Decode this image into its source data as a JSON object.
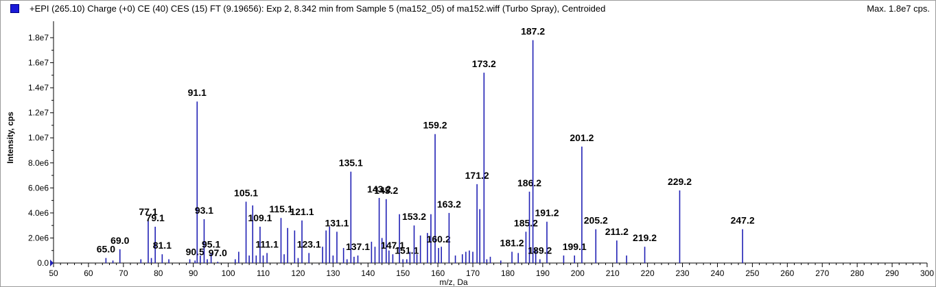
{
  "header": {
    "title": "+EPI (265.10) Charge (+0) CE (40) CES (15) FT (9.19656): Exp 2, 8.342 min from Sample 5 (ma152_05) of ma152.wiff (Turbo Spray), Centroided",
    "max_text": "Max. 1.8e7 cps.",
    "legend_color": "#1a1ad8"
  },
  "chart_data": {
    "type": "bar",
    "xlabel": "m/z, Da",
    "ylabel": "Intensity, cps",
    "xlim": [
      50,
      300
    ],
    "ylim": [
      0,
      18000000.0
    ],
    "x_ticks": [
      50,
      60,
      70,
      80,
      90,
      100,
      110,
      120,
      130,
      140,
      150,
      160,
      170,
      180,
      190,
      200,
      210,
      220,
      230,
      240,
      250,
      260,
      270,
      280,
      290,
      300
    ],
    "y_ticks": [
      {
        "value": 0,
        "label": "0.0"
      },
      {
        "value": 2000000,
        "label": "2.0e6"
      },
      {
        "value": 4000000,
        "label": "4.0e6"
      },
      {
        "value": 6000000,
        "label": "6.0e6"
      },
      {
        "value": 8000000,
        "label": "8.0e6"
      },
      {
        "value": 10000000,
        "label": "1.0e7"
      },
      {
        "value": 12000000,
        "label": "1.2e7"
      },
      {
        "value": 14000000,
        "label": "1.4e7"
      },
      {
        "value": 16000000,
        "label": "1.6e7"
      },
      {
        "value": 18000000,
        "label": "1.8e7"
      }
    ],
    "series_color": "#1f1fb4",
    "peaks": [
      {
        "x": 65.0,
        "y": 400000,
        "label": "65.0"
      },
      {
        "x": 67.0,
        "y": 200000
      },
      {
        "x": 69.0,
        "y": 1100000,
        "label": "69.0"
      },
      {
        "x": 75.0,
        "y": 300000
      },
      {
        "x": 77.1,
        "y": 3400000,
        "label": "77.1"
      },
      {
        "x": 78.0,
        "y": 400000
      },
      {
        "x": 79.1,
        "y": 2900000,
        "label": "79.1"
      },
      {
        "x": 81.1,
        "y": 700000,
        "label": "81.1"
      },
      {
        "x": 83.0,
        "y": 300000
      },
      {
        "x": 89.0,
        "y": 300000
      },
      {
        "x": 90.5,
        "y": 200000,
        "label": "90.5"
      },
      {
        "x": 91.1,
        "y": 12900000,
        "label": "91.1"
      },
      {
        "x": 92.0,
        "y": 600000
      },
      {
        "x": 93.1,
        "y": 3500000,
        "label": "93.1"
      },
      {
        "x": 94.0,
        "y": 300000
      },
      {
        "x": 95.1,
        "y": 800000,
        "label": "95.1"
      },
      {
        "x": 97.0,
        "y": 100000,
        "label": "97.0"
      },
      {
        "x": 102.0,
        "y": 300000
      },
      {
        "x": 103.0,
        "y": 900000
      },
      {
        "x": 105.1,
        "y": 4900000,
        "label": "105.1"
      },
      {
        "x": 106.0,
        "y": 600000
      },
      {
        "x": 107.0,
        "y": 4600000
      },
      {
        "x": 108.0,
        "y": 600000
      },
      {
        "x": 109.1,
        "y": 2900000,
        "label": "109.1"
      },
      {
        "x": 110.0,
        "y": 600000
      },
      {
        "x": 111.1,
        "y": 800000,
        "label": "111.1"
      },
      {
        "x": 115.1,
        "y": 3600000,
        "label": "115.1"
      },
      {
        "x": 116.0,
        "y": 700000
      },
      {
        "x": 117.0,
        "y": 2800000
      },
      {
        "x": 119.0,
        "y": 2600000
      },
      {
        "x": 120.0,
        "y": 400000
      },
      {
        "x": 121.1,
        "y": 3400000,
        "label": "121.1"
      },
      {
        "x": 123.1,
        "y": 800000,
        "label": "123.1"
      },
      {
        "x": 127.0,
        "y": 1300000
      },
      {
        "x": 128.0,
        "y": 2600000
      },
      {
        "x": 129.0,
        "y": 2900000
      },
      {
        "x": 130.0,
        "y": 600000
      },
      {
        "x": 131.1,
        "y": 2500000,
        "label": "131.1"
      },
      {
        "x": 133.0,
        "y": 1200000
      },
      {
        "x": 134.0,
        "y": 300000
      },
      {
        "x": 135.1,
        "y": 7300000,
        "label": "135.1"
      },
      {
        "x": 136.0,
        "y": 500000
      },
      {
        "x": 137.1,
        "y": 600000,
        "label": "137.1"
      },
      {
        "x": 141.0,
        "y": 1700000
      },
      {
        "x": 142.0,
        "y": 1300000
      },
      {
        "x": 143.2,
        "y": 5200000,
        "label": "143.2"
      },
      {
        "x": 144.0,
        "y": 2000000
      },
      {
        "x": 145.2,
        "y": 5100000,
        "label": "145.2"
      },
      {
        "x": 146.0,
        "y": 1000000
      },
      {
        "x": 147.1,
        "y": 700000,
        "label": "147.1"
      },
      {
        "x": 149.0,
        "y": 3900000
      },
      {
        "x": 150.0,
        "y": 300000
      },
      {
        "x": 151.1,
        "y": 300000,
        "label": "151.1"
      },
      {
        "x": 152.0,
        "y": 900000
      },
      {
        "x": 153.2,
        "y": 3000000,
        "label": "153.2"
      },
      {
        "x": 154.0,
        "y": 700000
      },
      {
        "x": 155.0,
        "y": 2200000
      },
      {
        "x": 157.0,
        "y": 2400000
      },
      {
        "x": 158.0,
        "y": 3900000
      },
      {
        "x": 159.2,
        "y": 10300000,
        "label": "159.2"
      },
      {
        "x": 160.2,
        "y": 1200000,
        "label": "160.2"
      },
      {
        "x": 161.0,
        "y": 1300000
      },
      {
        "x": 163.2,
        "y": 4000000,
        "label": "163.2"
      },
      {
        "x": 165.0,
        "y": 600000
      },
      {
        "x": 167.0,
        "y": 700000
      },
      {
        "x": 168.0,
        "y": 900000
      },
      {
        "x": 169.0,
        "y": 1000000
      },
      {
        "x": 170.0,
        "y": 900000
      },
      {
        "x": 171.2,
        "y": 6300000,
        "label": "171.2"
      },
      {
        "x": 172.0,
        "y": 4300000
      },
      {
        "x": 173.2,
        "y": 15200000,
        "label": "173.2"
      },
      {
        "x": 174.0,
        "y": 300000
      },
      {
        "x": 175.0,
        "y": 500000
      },
      {
        "x": 178.0,
        "y": 200000
      },
      {
        "x": 181.2,
        "y": 900000,
        "label": "181.2"
      },
      {
        "x": 183.0,
        "y": 800000
      },
      {
        "x": 185.2,
        "y": 2500000,
        "label": "185.2"
      },
      {
        "x": 186.2,
        "y": 5700000,
        "label": "186.2"
      },
      {
        "x": 187.2,
        "y": 17800000,
        "label": "187.2"
      },
      {
        "x": 188.0,
        "y": 1100000
      },
      {
        "x": 189.2,
        "y": 300000,
        "label": "189.2"
      },
      {
        "x": 191.2,
        "y": 3300000,
        "label": "191.2"
      },
      {
        "x": 196.0,
        "y": 600000
      },
      {
        "x": 199.1,
        "y": 600000,
        "label": "199.1"
      },
      {
        "x": 201.2,
        "y": 9300000,
        "label": "201.2"
      },
      {
        "x": 205.2,
        "y": 2700000,
        "label": "205.2"
      },
      {
        "x": 211.2,
        "y": 1800000,
        "label": "211.2"
      },
      {
        "x": 214.0,
        "y": 600000
      },
      {
        "x": 219.2,
        "y": 1300000,
        "label": "219.2"
      },
      {
        "x": 229.2,
        "y": 5800000,
        "label": "229.2"
      },
      {
        "x": 247.2,
        "y": 2700000,
        "label": "247.2"
      }
    ]
  }
}
